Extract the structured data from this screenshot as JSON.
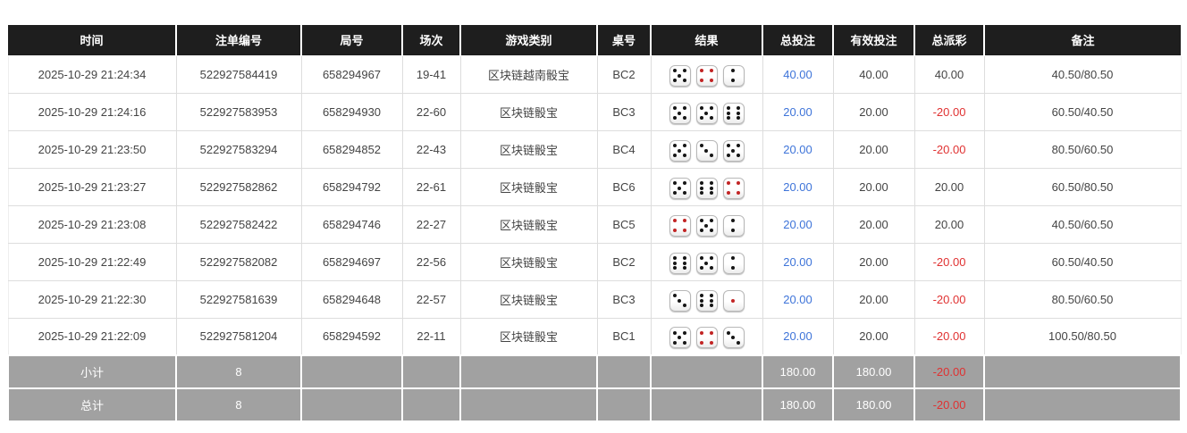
{
  "colors": {
    "header_bg": "#1e1e1e",
    "footer_bg": "#a1a1a1",
    "bet_amount_blue": "#3e74d9",
    "negative_red": "#e03131",
    "dice_pip_black": "#161616",
    "dice_pip_red": "#c22525"
  },
  "table": {
    "headers": [
      "时间",
      "注单编号",
      "局号",
      "场次",
      "游戏类别",
      "桌号",
      "结果",
      "总投注",
      "有效投注",
      "总派彩",
      "备注"
    ],
    "rows": [
      {
        "time": "2025-10-29 21:24:34",
        "bet_id": "522927584419",
        "round": "658294967",
        "session": "19-41",
        "game": "区块链越南骰宝",
        "table_no": "BC2",
        "dice": [
          5,
          4,
          2
        ],
        "total_bet": "40.00",
        "valid_bet": "40.00",
        "payout": "40.00",
        "remark": "40.50/80.50"
      },
      {
        "time": "2025-10-29 21:24:16",
        "bet_id": "522927583953",
        "round": "658294930",
        "session": "22-60",
        "game": "区块链骰宝",
        "table_no": "BC3",
        "dice": [
          5,
          5,
          6
        ],
        "total_bet": "20.00",
        "valid_bet": "20.00",
        "payout": "-20.00",
        "remark": "60.50/40.50"
      },
      {
        "time": "2025-10-29 21:23:50",
        "bet_id": "522927583294",
        "round": "658294852",
        "session": "22-43",
        "game": "区块链骰宝",
        "table_no": "BC4",
        "dice": [
          5,
          3,
          5
        ],
        "total_bet": "20.00",
        "valid_bet": "20.00",
        "payout": "-20.00",
        "remark": "80.50/60.50"
      },
      {
        "time": "2025-10-29 21:23:27",
        "bet_id": "522927582862",
        "round": "658294792",
        "session": "22-61",
        "game": "区块链骰宝",
        "table_no": "BC6",
        "dice": [
          5,
          6,
          4
        ],
        "total_bet": "20.00",
        "valid_bet": "20.00",
        "payout": "20.00",
        "remark": "60.50/80.50"
      },
      {
        "time": "2025-10-29 21:23:08",
        "bet_id": "522927582422",
        "round": "658294746",
        "session": "22-27",
        "game": "区块链骰宝",
        "table_no": "BC5",
        "dice": [
          4,
          5,
          2
        ],
        "total_bet": "20.00",
        "valid_bet": "20.00",
        "payout": "20.00",
        "remark": "40.50/60.50"
      },
      {
        "time": "2025-10-29 21:22:49",
        "bet_id": "522927582082",
        "round": "658294697",
        "session": "22-56",
        "game": "区块链骰宝",
        "table_no": "BC2",
        "dice": [
          6,
          5,
          2
        ],
        "total_bet": "20.00",
        "valid_bet": "20.00",
        "payout": "-20.00",
        "remark": "60.50/40.50"
      },
      {
        "time": "2025-10-29 21:22:30",
        "bet_id": "522927581639",
        "round": "658294648",
        "session": "22-57",
        "game": "区块链骰宝",
        "table_no": "BC3",
        "dice": [
          3,
          6,
          1
        ],
        "total_bet": "20.00",
        "valid_bet": "20.00",
        "payout": "-20.00",
        "remark": "80.50/60.50"
      },
      {
        "time": "2025-10-29 21:22:09",
        "bet_id": "522927581204",
        "round": "658294592",
        "session": "22-11",
        "game": "区块链骰宝",
        "table_no": "BC1",
        "dice": [
          5,
          4,
          3
        ],
        "total_bet": "20.00",
        "valid_bet": "20.00",
        "payout": "-20.00",
        "remark": "100.50/80.50"
      }
    ],
    "footer": [
      {
        "label": "小计",
        "count": "8",
        "total_bet": "180.00",
        "valid_bet": "180.00",
        "payout": "-20.00",
        "remark": ""
      },
      {
        "label": "总计",
        "count": "8",
        "total_bet": "180.00",
        "valid_bet": "180.00",
        "payout": "-20.00",
        "remark": ""
      }
    ]
  }
}
